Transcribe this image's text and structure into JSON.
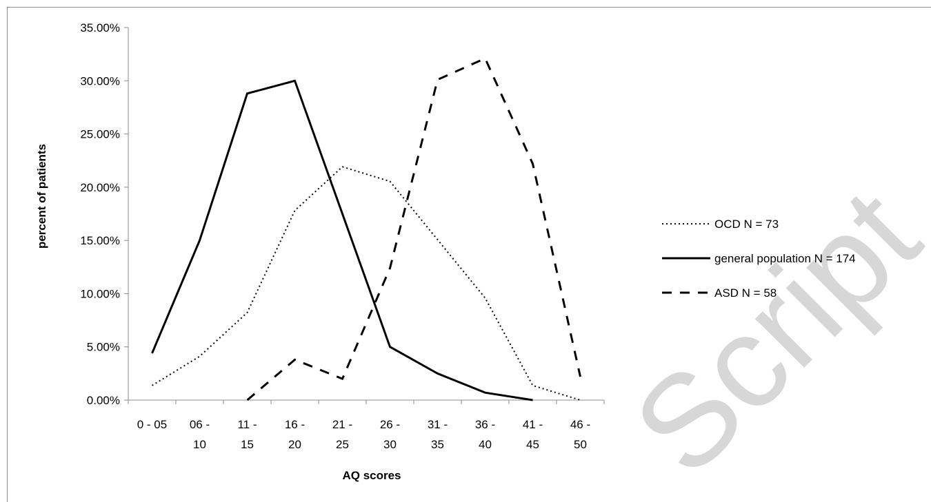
{
  "chart_data": {
    "type": "line",
    "categories": [
      "0 - 05",
      "06 - 10",
      "11 - 15",
      "16 - 20",
      "21 - 25",
      "26 - 30",
      "31 - 35",
      "36 - 40",
      "41 - 45",
      "46 - 50"
    ],
    "category_lines": [
      [
        "0 - 05"
      ],
      [
        "06 -",
        "10"
      ],
      [
        "11 -",
        "15"
      ],
      [
        "16 -",
        "20"
      ],
      [
        "21 -",
        "25"
      ],
      [
        "26 -",
        "30"
      ],
      [
        "31 -",
        "35"
      ],
      [
        "36 -",
        "40"
      ],
      [
        "41 -",
        "45"
      ],
      [
        "46 -",
        "50"
      ]
    ],
    "xlabel": "AQ scores",
    "ylabel": "percent of patients",
    "ylim": [
      0,
      35
    ],
    "yticks": [
      0,
      5,
      10,
      15,
      20,
      25,
      30,
      35
    ],
    "ytick_labels": [
      "0.00%",
      "5.00%",
      "10.00%",
      "15.00%",
      "20.00%",
      "25.00%",
      "30.00%",
      "35.00%"
    ],
    "grid": false,
    "legend_position": "right",
    "series": [
      {
        "name": "OCD N = 73",
        "style": "dotted",
        "color": "#000000",
        "values": [
          1.37,
          4.11,
          8.22,
          17.81,
          21.92,
          20.55,
          15.07,
          9.59,
          1.37,
          0.0
        ]
      },
      {
        "name": "general population N = 174",
        "style": "solid",
        "color": "#000000",
        "values": [
          4.4,
          15.0,
          28.8,
          30.0,
          17.5,
          5.0,
          2.5,
          0.7,
          0.0,
          null
        ]
      },
      {
        "name": "ASD N = 58",
        "style": "dashed",
        "color": "#000000",
        "values": [
          null,
          null,
          0.0,
          3.8,
          2.0,
          12.4,
          30.1,
          32.1,
          22.2,
          2.2
        ]
      }
    ]
  },
  "watermark": "Script"
}
